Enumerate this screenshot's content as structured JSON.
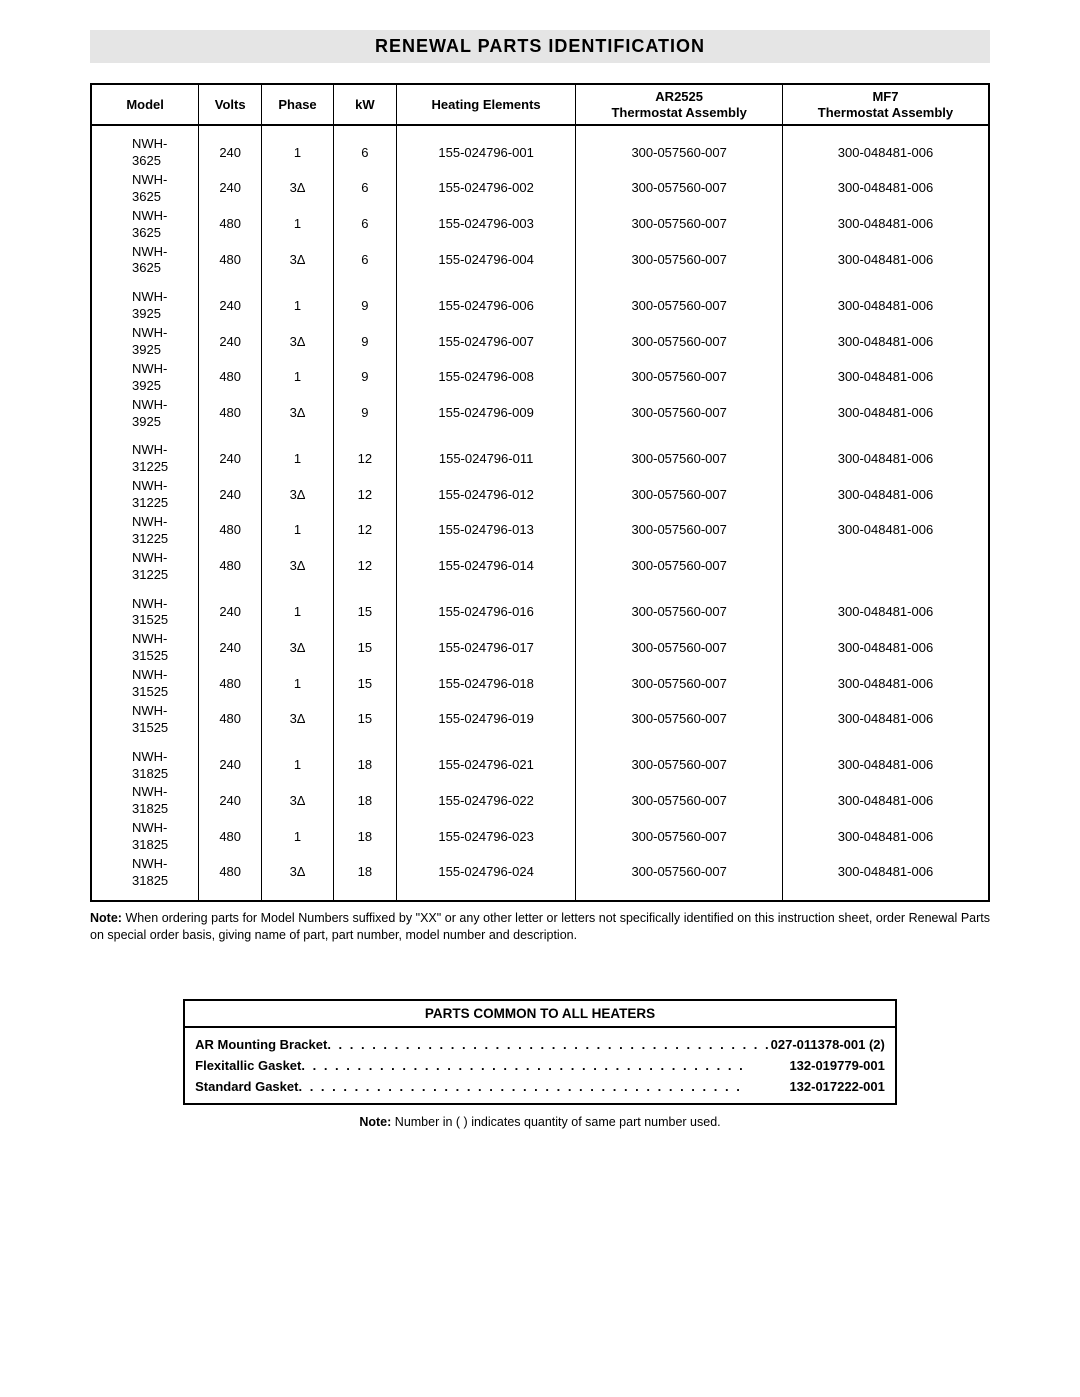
{
  "title": "RENEWAL PARTS IDENTIFICATION",
  "headers": {
    "model": "Model",
    "volts": "Volts",
    "phase": "Phase",
    "kw": "kW",
    "heating": "Heating Elements",
    "ar2525_top": "AR2525",
    "ar2525_bot": "Thermostat Assembly",
    "mf7_top": "MF7",
    "mf7_bot": "Thermostat Assembly"
  },
  "groups": [
    {
      "rows": [
        {
          "model": "NWH-3625",
          "volts": "240",
          "phase": "1",
          "kw": "6",
          "heating": "155-024796-001",
          "ar": "300-057560-007",
          "mf": "300-048481-006"
        },
        {
          "model": "NWH-3625",
          "volts": "240",
          "phase": "3Δ",
          "kw": "6",
          "heating": "155-024796-002",
          "ar": "300-057560-007",
          "mf": "300-048481-006"
        },
        {
          "model": "NWH-3625",
          "volts": "480",
          "phase": "1",
          "kw": "6",
          "heating": "155-024796-003",
          "ar": "300-057560-007",
          "mf": "300-048481-006"
        },
        {
          "model": "NWH-3625",
          "volts": "480",
          "phase": "3Δ",
          "kw": "6",
          "heating": "155-024796-004",
          "ar": "300-057560-007",
          "mf": "300-048481-006"
        }
      ]
    },
    {
      "rows": [
        {
          "model": "NWH-3925",
          "volts": "240",
          "phase": "1",
          "kw": "9",
          "heating": "155-024796-006",
          "ar": "300-057560-007",
          "mf": "300-048481-006"
        },
        {
          "model": "NWH-3925",
          "volts": "240",
          "phase": "3Δ",
          "kw": "9",
          "heating": "155-024796-007",
          "ar": "300-057560-007",
          "mf": "300-048481-006"
        },
        {
          "model": "NWH-3925",
          "volts": "480",
          "phase": "1",
          "kw": "9",
          "heating": "155-024796-008",
          "ar": "300-057560-007",
          "mf": "300-048481-006"
        },
        {
          "model": "NWH-3925",
          "volts": "480",
          "phase": "3Δ",
          "kw": "9",
          "heating": "155-024796-009",
          "ar": "300-057560-007",
          "mf": "300-048481-006"
        }
      ]
    },
    {
      "rows": [
        {
          "model": "NWH-31225",
          "volts": "240",
          "phase": "1",
          "kw": "12",
          "heating": "155-024796-011",
          "ar": "300-057560-007",
          "mf": "300-048481-006"
        },
        {
          "model": "NWH-31225",
          "volts": "240",
          "phase": "3Δ",
          "kw": "12",
          "heating": "155-024796-012",
          "ar": "300-057560-007",
          "mf": "300-048481-006"
        },
        {
          "model": "NWH-31225",
          "volts": "480",
          "phase": "1",
          "kw": "12",
          "heating": "155-024796-013",
          "ar": "300-057560-007",
          "mf": "300-048481-006"
        },
        {
          "model": "NWH-31225",
          "volts": "480",
          "phase": "3Δ",
          "kw": "12",
          "heating": "155-024796-014",
          "ar": "300-057560-007",
          "mf": ""
        }
      ]
    },
    {
      "rows": [
        {
          "model": "NWH-31525",
          "volts": "240",
          "phase": "1",
          "kw": "15",
          "heating": "155-024796-016",
          "ar": "300-057560-007",
          "mf": "300-048481-006"
        },
        {
          "model": "NWH-31525",
          "volts": "240",
          "phase": "3Δ",
          "kw": "15",
          "heating": "155-024796-017",
          "ar": "300-057560-007",
          "mf": "300-048481-006"
        },
        {
          "model": "NWH-31525",
          "volts": "480",
          "phase": "1",
          "kw": "15",
          "heating": "155-024796-018",
          "ar": "300-057560-007",
          "mf": "300-048481-006"
        },
        {
          "model": "NWH-31525",
          "volts": "480",
          "phase": "3Δ",
          "kw": "15",
          "heating": "155-024796-019",
          "ar": "300-057560-007",
          "mf": "300-048481-006"
        }
      ]
    },
    {
      "rows": [
        {
          "model": "NWH-31825",
          "volts": "240",
          "phase": "1",
          "kw": "18",
          "heating": "155-024796-021",
          "ar": "300-057560-007",
          "mf": "300-048481-006"
        },
        {
          "model": "NWH-31825",
          "volts": "240",
          "phase": "3Δ",
          "kw": "18",
          "heating": "155-024796-022",
          "ar": "300-057560-007",
          "mf": "300-048481-006"
        },
        {
          "model": "NWH-31825",
          "volts": "480",
          "phase": "1",
          "kw": "18",
          "heating": "155-024796-023",
          "ar": "300-057560-007",
          "mf": "300-048481-006"
        },
        {
          "model": "NWH-31825",
          "volts": "480",
          "phase": "3Δ",
          "kw": "18",
          "heating": "155-024796-024",
          "ar": "300-057560-007",
          "mf": "300-048481-006"
        }
      ]
    }
  ],
  "note1_label": "Note:",
  "note1_text": " When ordering parts for Model Numbers suffixed by \"XX\" or any other letter or letters not specifically identified on this instruction sheet, order Renewal Parts on special order basis, giving name of part, part number, model number and description.",
  "common": {
    "title": "PARTS COMMON TO ALL HEATERS",
    "rows": [
      {
        "label": "AR Mounting Bracket",
        "value": "027-011378-001 (2)"
      },
      {
        "label": "Flexitallic Gasket",
        "value": "132-019779-001"
      },
      {
        "label": "Standard Gasket",
        "value": "132-017222-001"
      }
    ]
  },
  "note2_label": "Note:",
  "note2_text": " Number in ( ) indicates quantity of same part number used.",
  "col_widths": {
    "model": "12%",
    "volts": "7%",
    "phase": "8%",
    "kw": "7%",
    "heating": "20%",
    "ar": "23%",
    "mf": "23%"
  }
}
